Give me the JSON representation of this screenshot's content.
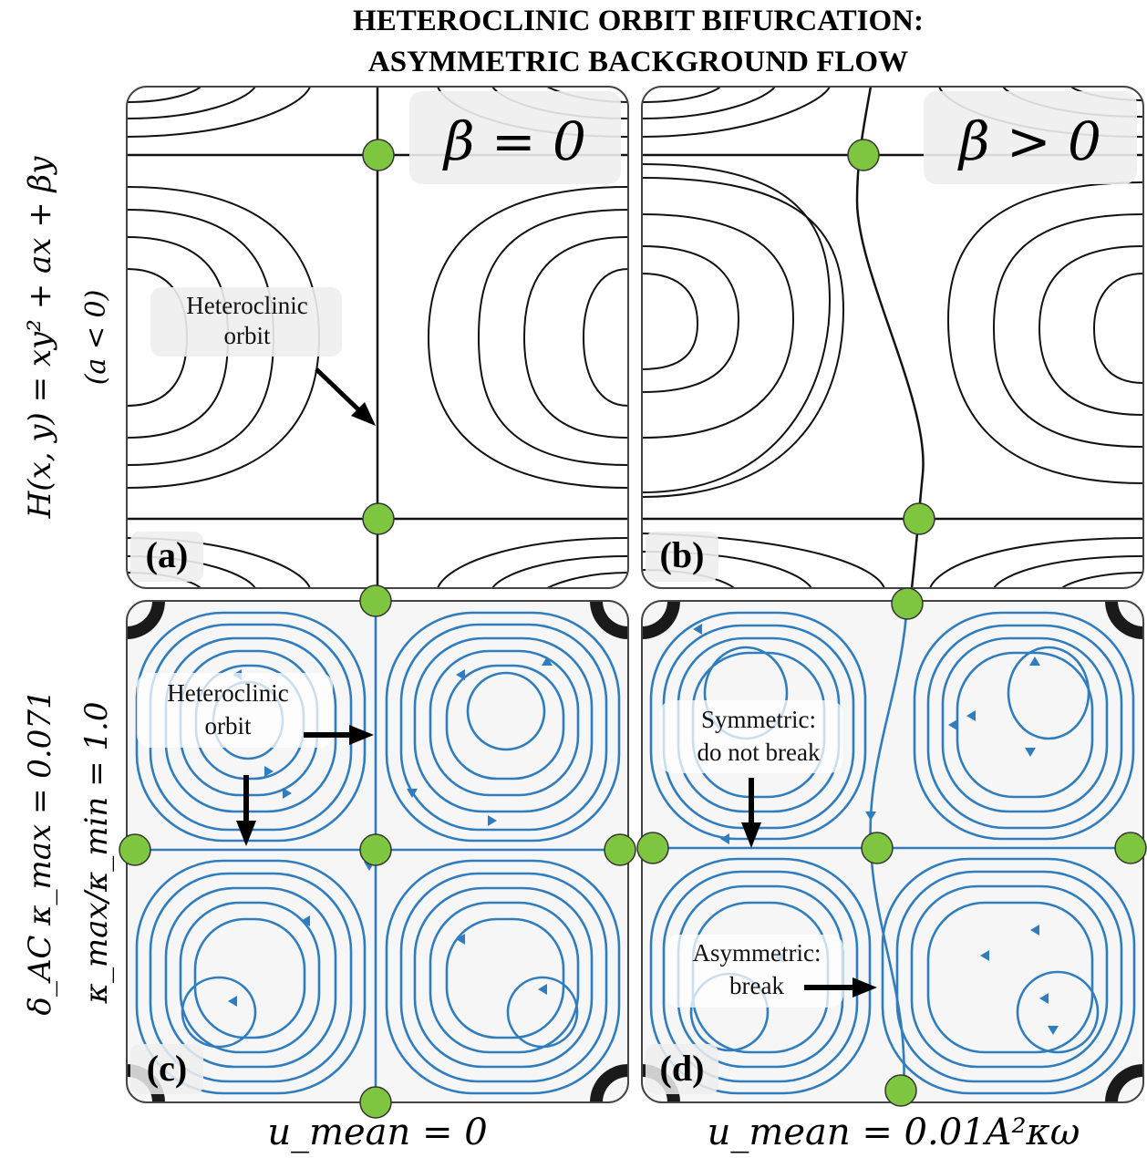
{
  "title": {
    "line1": "HETEROCLINIC ORBIT BIFURCATION:",
    "line2": "ASYMMETRIC BACKGROUND FLOW"
  },
  "row_labels": {
    "top_main": "H(x, y) = xy² + ax + βy",
    "top_sub": "(a < 0)",
    "bottom_main": "δ_AC κ_max = 0.071",
    "bottom_sub": "κ_max/κ_min = 1.0"
  },
  "col_labels": {
    "left": "u_mean = 0",
    "right": "u_mean = 0.01A²κω"
  },
  "panels": {
    "a": {
      "label": "(a)",
      "param": "β = 0",
      "annotation": [
        "Heteroclinic",
        "orbit"
      ]
    },
    "b": {
      "label": "(b)",
      "param": "β > 0"
    },
    "c": {
      "label": "(c)",
      "annotation": [
        "Heteroclinic",
        "orbit"
      ]
    },
    "d": {
      "label": "(d)",
      "annotation_top": [
        "Symmetric:",
        "do not break"
      ],
      "annotation_bottom": [
        "Asymmetric:",
        "break"
      ]
    }
  },
  "colors": {
    "contour": "#111111",
    "streamline": "#2f7dbf",
    "fixed_point": "#7ec63f",
    "panel_bg": "#f6f6f6",
    "boundary_fill": "#1a1a1a"
  }
}
